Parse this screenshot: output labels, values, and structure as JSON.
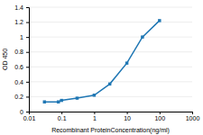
{
  "chart_data": {
    "type": "line",
    "xlabel": "Recombinant ProteinConcentration(ng/ml)",
    "ylabel": "OD 450",
    "x": [
      0.03,
      0.08,
      0.1,
      0.3,
      1.0,
      3.0,
      10.0,
      30.0,
      100.0
    ],
    "values": [
      0.13,
      0.13,
      0.15,
      0.18,
      0.22,
      0.37,
      0.65,
      1.0,
      1.22
    ],
    "marker": "square",
    "log": "x",
    "grid": true,
    "xlim": [
      0.01,
      1000
    ],
    "ylim": [
      0,
      1.4
    ],
    "xticks": [
      0.01,
      0.1,
      1,
      10,
      100,
      1000
    ],
    "yticks": [
      0,
      0.2,
      0.4,
      0.6,
      0.8,
      1,
      1.2,
      1.4
    ]
  }
}
